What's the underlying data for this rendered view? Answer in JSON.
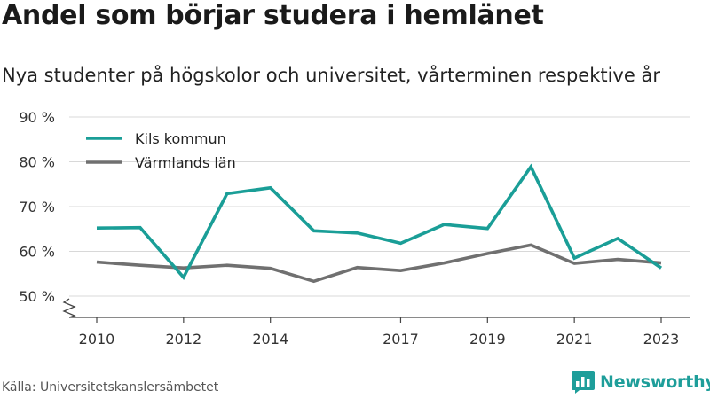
{
  "title": "Andel som börjar studera i hemlänet",
  "subtitle": "Nya studenter på högskolor och universitet, vårterminen respektive år",
  "source": "Källa: Universitetskanslersämbetet",
  "brand": "Newsworthy",
  "brand_icon": "bar-chart-logo-icon",
  "colors": {
    "kils": "#1a9e97",
    "varmland": "#707070",
    "grid": "#d8d8d8",
    "brand": "#1e9e9a"
  },
  "chart_data": {
    "type": "line",
    "title": "Andel som börjar studera i hemlänet",
    "subtitle": "Nya studenter på högskolor och universitet, vårterminen respektive år",
    "xlabel": "",
    "ylabel": "",
    "xlim": [
      2010,
      2023
    ],
    "ylim": [
      50,
      90
    ],
    "axis_break": true,
    "y_ticks": [
      50,
      60,
      70,
      80,
      90
    ],
    "y_tick_labels": [
      "50 %",
      "60 %",
      "70 %",
      "80 %",
      "90 %"
    ],
    "x_ticks": [
      2010,
      2012,
      2014,
      2017,
      2019,
      2021,
      2023
    ],
    "x_tick_labels": [
      "2010",
      "2012",
      "2014",
      "2017",
      "2019",
      "2021",
      "2023"
    ],
    "grid": true,
    "legend_position": "top-left",
    "x": [
      2010,
      2011,
      2012,
      2013,
      2014,
      2015,
      2016,
      2017,
      2018,
      2019,
      2020,
      2021,
      2022,
      2023
    ],
    "series": [
      {
        "name": "Kils kommun",
        "color": "#1a9e97",
        "values": [
          65.2,
          65.3,
          54.2,
          72.9,
          74.2,
          64.6,
          64.1,
          61.8,
          66.0,
          65.1,
          78.9,
          58.5,
          62.9,
          56.3
        ]
      },
      {
        "name": "Värmlands län",
        "color": "#707070",
        "values": [
          57.6,
          56.9,
          56.3,
          56.9,
          56.2,
          53.3,
          56.4,
          55.7,
          57.4,
          59.5,
          61.4,
          57.3,
          58.2,
          57.4
        ]
      }
    ]
  }
}
